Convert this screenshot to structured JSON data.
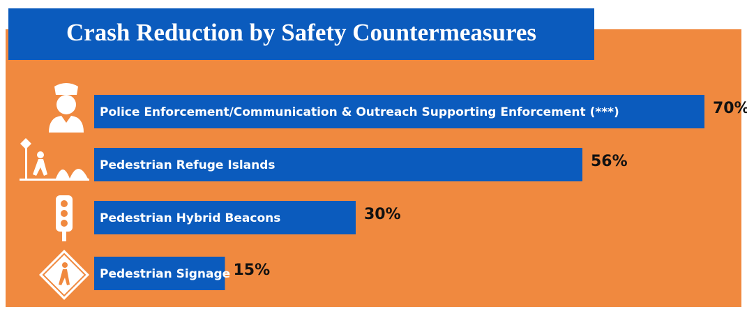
{
  "chart_data": {
    "type": "bar",
    "orientation": "horizontal",
    "title": "Crash Reduction by Safety Countermeasures",
    "categories": [
      "Police Enforcement/Communication & Outreach Supporting Enforcement (***)",
      "Pedestrian Refuge Islands",
      "Pedestrian Hybrid Beacons",
      "Pedestrian Signage"
    ],
    "values": [
      70,
      56,
      30,
      15
    ],
    "value_labels": [
      "70%",
      "56%",
      "30%",
      "15%"
    ],
    "color": "#0b5bbd"
  }
}
